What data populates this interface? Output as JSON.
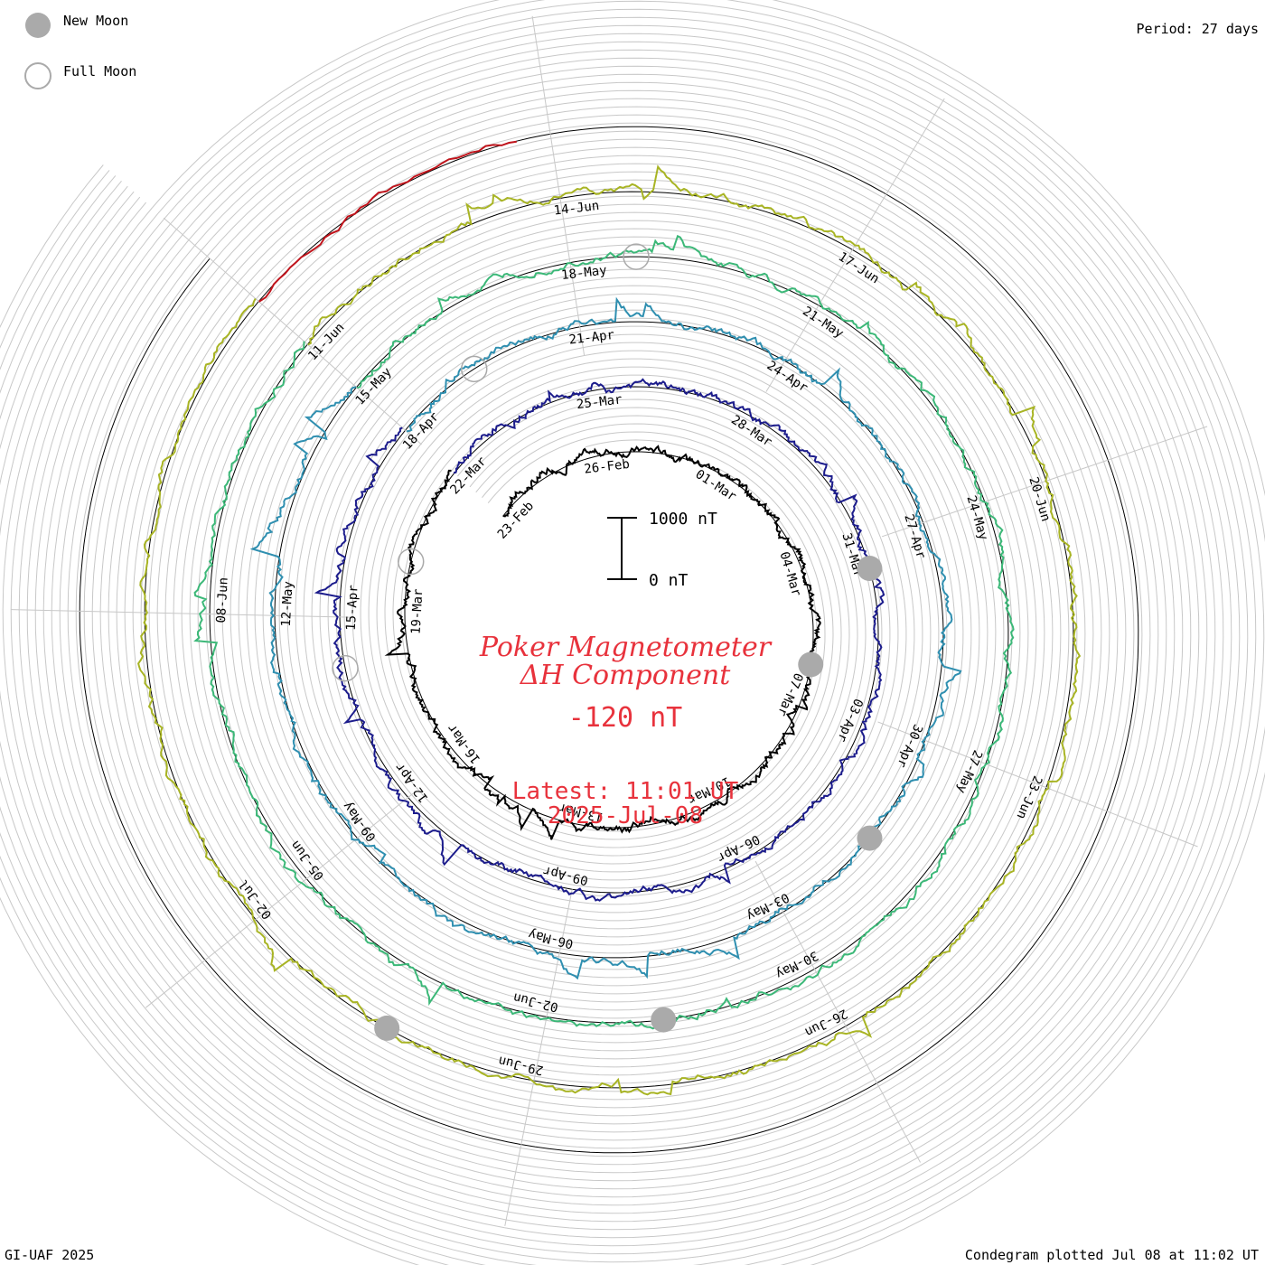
{
  "legend": {
    "new_moon_label": "New Moon",
    "full_moon_label": "Full Moon",
    "new_moon_color": "#aaaaaa",
    "full_moon_color": "#aaaaaa"
  },
  "header": {
    "period_label": "Period: 27 days"
  },
  "footer": {
    "credit": "GI-UAF 2025",
    "plotted": "Condegram plotted Jul 08 at 11:02 UT"
  },
  "center": {
    "title_line1": "Poker Magnetometer",
    "title_line2": "ΔH Component",
    "current_value": "-120 nT",
    "latest_time": "Latest: 11:01 UT",
    "latest_date": "2025-Jul-08",
    "scale_top": "1000 nT",
    "scale_bottom": "0 nT"
  },
  "chart_data": {
    "type": "line",
    "title": "Poker Magnetometer ΔH Component",
    "period_days": 27,
    "scale_nT": [
      0,
      1000
    ],
    "latest_value_nT": -120,
    "series": [
      {
        "color": "#000000",
        "labels": [
          "23-Feb",
          "26-Feb",
          "01-Mar",
          "04-Mar",
          "07-Mar",
          "10-Mar",
          "13-Mar",
          "16-Mar",
          "19-Mar"
        ]
      },
      {
        "color": "#1c1c8c",
        "labels": [
          "22-Mar",
          "25-Mar",
          "28-Mar",
          "31-Mar",
          "03-Apr",
          "06-Apr",
          "09-Apr",
          "12-Apr",
          "15-Apr"
        ]
      },
      {
        "color": "#2f8fb0",
        "labels": [
          "18-Apr",
          "21-Apr",
          "24-Apr",
          "27-Apr",
          "30-Apr",
          "03-May",
          "06-May",
          "09-May",
          "12-May"
        ]
      },
      {
        "color": "#3cb878",
        "labels": [
          "15-May",
          "18-May",
          "21-May",
          "24-May",
          "27-May",
          "30-May",
          "02-Jun",
          "05-Jun",
          "08-Jun"
        ]
      },
      {
        "color": "#a8b424",
        "labels": [
          "11-Jun",
          "14-Jun",
          "17-Jun",
          "20-Jun",
          "23-Jun",
          "26-Jun",
          "29-Jun",
          "02-Jul"
        ]
      },
      {
        "color": "#c0141c",
        "labels": []
      }
    ],
    "new_moon_markers": [
      "26-Feb",
      "28-Mar",
      "27-Apr",
      "27-May",
      "25-Jun"
    ],
    "full_moon_markers": [
      "12-Apr",
      "13-Mar",
      "12-May",
      "11-Jun"
    ]
  }
}
